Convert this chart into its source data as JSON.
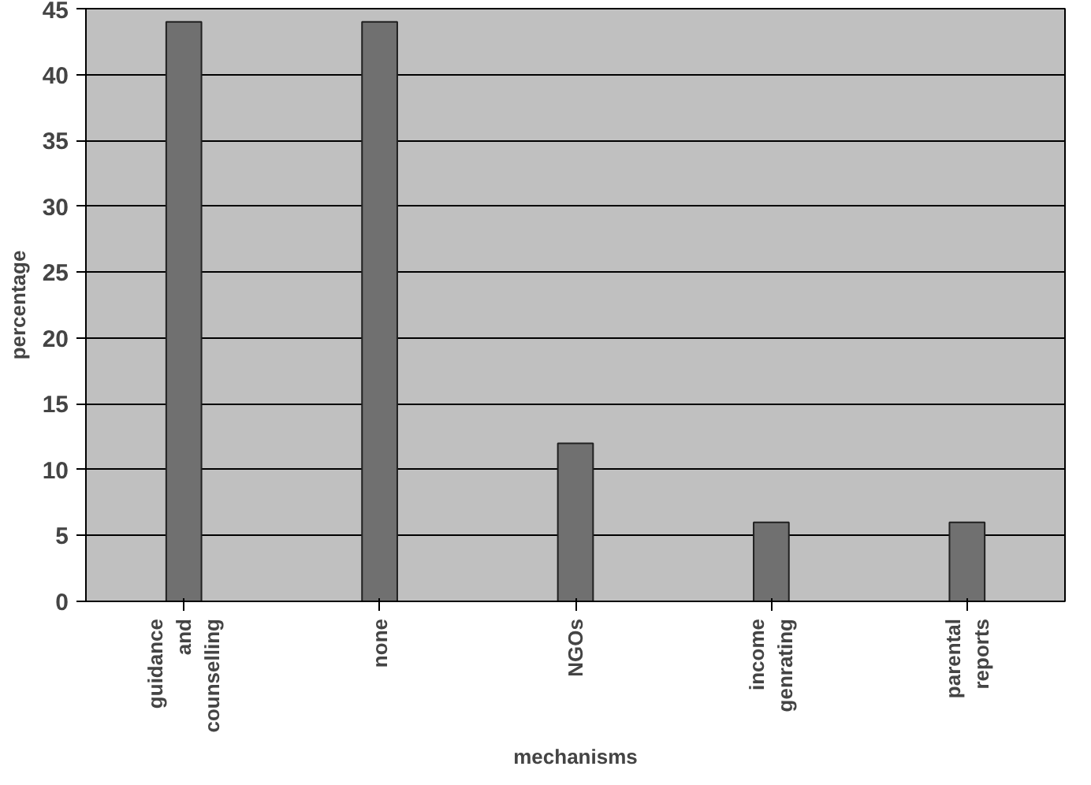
{
  "chart_data": {
    "type": "bar",
    "xlabel": "mechanisms",
    "ylabel": "percentage",
    "categories": [
      "guidance and counselling",
      "none",
      "NGOs",
      "income genrating",
      "parental reports"
    ],
    "values": [
      44,
      44,
      12,
      6,
      6
    ],
    "color": "#707070",
    "ylim": [
      0,
      45
    ],
    "yticks": [
      0,
      5,
      10,
      15,
      20,
      25,
      30,
      35,
      40,
      45
    ],
    "grid": "y"
  }
}
